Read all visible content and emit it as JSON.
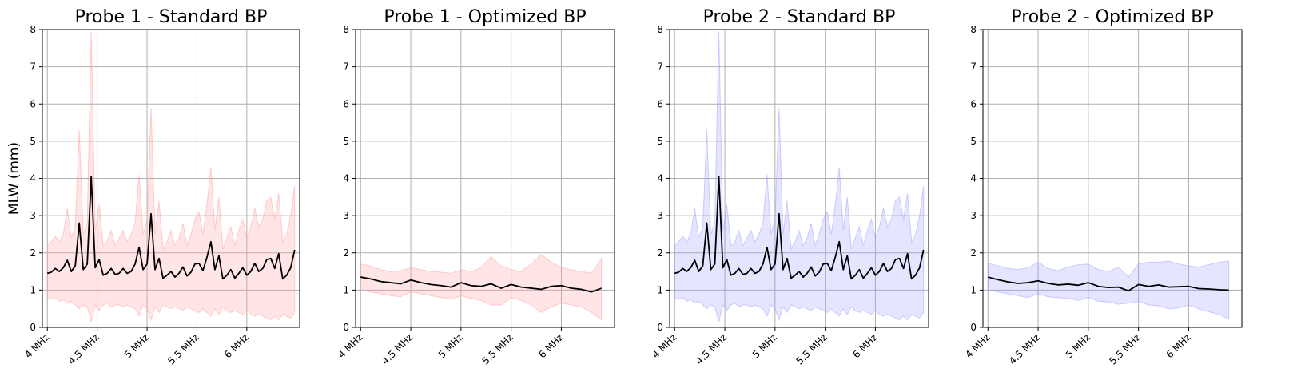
{
  "chart_data": [
    {
      "type": "line",
      "title": "Probe 1 - Standard BP",
      "ylabel": "MLW (mm)",
      "xlabel": "",
      "ylim": [
        0,
        8
      ],
      "yticks": [
        0,
        1,
        2,
        3,
        4,
        5,
        6,
        7,
        8
      ],
      "xticks": [
        "4 MHz",
        "4.5 MHz",
        "5 MHz",
        "5.5 MHz",
        "6 MHz"
      ],
      "grid": true,
      "band_color": "#ff9999",
      "line_color": "#000000",
      "x": [
        4.0,
        4.04,
        4.08,
        4.12,
        4.16,
        4.2,
        4.24,
        4.28,
        4.32,
        4.36,
        4.4,
        4.44,
        4.48,
        4.52,
        4.56,
        4.6,
        4.64,
        4.68,
        4.72,
        4.76,
        4.8,
        4.84,
        4.88,
        4.92,
        4.96,
        5.0,
        5.04,
        5.08,
        5.12,
        5.16,
        5.2,
        5.24,
        5.28,
        5.32,
        5.36,
        5.4,
        5.44,
        5.48,
        5.52,
        5.56,
        5.6,
        5.64,
        5.68,
        5.72,
        5.76,
        5.8,
        5.84,
        5.88,
        5.92,
        5.96,
        6.0,
        6.04,
        6.08,
        6.12,
        6.16,
        6.2,
        6.24,
        6.28,
        6.32,
        6.36,
        6.4,
        6.44,
        6.48
      ],
      "series": [
        {
          "mean": [
            1.45,
            1.48,
            1.58,
            1.5,
            1.6,
            1.8,
            1.5,
            1.65,
            2.8,
            1.55,
            1.7,
            4.05,
            1.6,
            1.82,
            1.4,
            1.45,
            1.58,
            1.42,
            1.45,
            1.58,
            1.45,
            1.5,
            1.7,
            2.15,
            1.55,
            1.7,
            3.05,
            1.55,
            1.85,
            1.32,
            1.4,
            1.5,
            1.35,
            1.45,
            1.62,
            1.38,
            1.48,
            1.7,
            1.72,
            1.52,
            1.88,
            2.3,
            1.55,
            1.92,
            1.3,
            1.4,
            1.55,
            1.32,
            1.45,
            1.6,
            1.4,
            1.5,
            1.72,
            1.5,
            1.58,
            1.82,
            1.85,
            1.58,
            1.98,
            1.3,
            1.4,
            1.6,
            2.08
          ],
          "upper": [
            2.2,
            2.3,
            2.45,
            2.3,
            2.5,
            3.2,
            2.4,
            2.7,
            5.3,
            2.5,
            2.8,
            7.95,
            2.6,
            3.3,
            2.2,
            2.3,
            2.6,
            2.2,
            2.4,
            2.6,
            2.3,
            2.5,
            2.8,
            4.1,
            2.5,
            2.9,
            5.9,
            2.5,
            3.4,
            2.1,
            2.3,
            2.6,
            2.2,
            2.4,
            2.8,
            2.2,
            2.5,
            2.9,
            3.1,
            2.5,
            3.3,
            4.3,
            2.6,
            3.5,
            2.1,
            2.4,
            2.7,
            2.2,
            2.6,
            2.9,
            2.4,
            2.7,
            3.2,
            2.7,
            2.9,
            3.4,
            3.5,
            2.9,
            3.6,
            2.3,
            2.5,
            3.0,
            3.8
          ],
          "lower": [
            0.8,
            0.75,
            0.8,
            0.7,
            0.75,
            0.65,
            0.7,
            0.6,
            0.5,
            0.6,
            0.55,
            0.15,
            0.6,
            0.45,
            0.6,
            0.65,
            0.55,
            0.6,
            0.6,
            0.55,
            0.6,
            0.55,
            0.5,
            0.3,
            0.6,
            0.5,
            0.2,
            0.55,
            0.4,
            0.6,
            0.55,
            0.5,
            0.55,
            0.5,
            0.45,
            0.55,
            0.5,
            0.45,
            0.4,
            0.5,
            0.4,
            0.3,
            0.5,
            0.35,
            0.55,
            0.45,
            0.4,
            0.45,
            0.4,
            0.35,
            0.45,
            0.35,
            0.3,
            0.35,
            0.3,
            0.25,
            0.2,
            0.3,
            0.2,
            0.35,
            0.3,
            0.25,
            0.4
          ]
        }
      ]
    },
    {
      "type": "line",
      "title": "Probe 1 - Optimized BP",
      "ylabel": "",
      "xlabel": "",
      "ylim": [
        0,
        8
      ],
      "yticks": [
        0,
        1,
        2,
        3,
        4,
        5,
        6,
        7,
        8
      ],
      "xticks": [
        "4 MHz",
        "4.5 MHz",
        "5 MHz",
        "5.5 MHz",
        "6 MHz"
      ],
      "grid": true,
      "band_color": "#ff9999",
      "line_color": "#000000",
      "x": [
        4.0,
        4.1,
        4.2,
        4.3,
        4.4,
        4.5,
        4.6,
        4.7,
        4.8,
        4.9,
        5.0,
        5.1,
        5.2,
        5.3,
        5.4,
        5.5,
        5.6,
        5.7,
        5.8,
        5.9,
        6.0,
        6.1,
        6.2,
        6.3,
        6.4
      ],
      "series": [
        {
          "mean": [
            1.35,
            1.3,
            1.23,
            1.2,
            1.17,
            1.27,
            1.2,
            1.15,
            1.12,
            1.08,
            1.2,
            1.12,
            1.1,
            1.17,
            1.05,
            1.15,
            1.08,
            1.05,
            1.02,
            1.1,
            1.12,
            1.05,
            1.02,
            0.95,
            1.05
          ],
          "upper": [
            1.7,
            1.65,
            1.55,
            1.5,
            1.52,
            1.6,
            1.55,
            1.5,
            1.48,
            1.45,
            1.55,
            1.5,
            1.6,
            1.9,
            1.65,
            1.55,
            1.5,
            1.7,
            1.95,
            1.75,
            1.6,
            1.55,
            1.5,
            1.45,
            1.85
          ],
          "lower": [
            1.0,
            0.95,
            0.9,
            0.85,
            0.82,
            0.95,
            0.9,
            0.85,
            0.8,
            0.75,
            0.85,
            0.78,
            0.72,
            0.6,
            0.6,
            0.8,
            0.72,
            0.6,
            0.4,
            0.55,
            0.65,
            0.6,
            0.55,
            0.4,
            0.2
          ]
        }
      ]
    },
    {
      "type": "line",
      "title": "Probe 2 - Standard BP",
      "ylabel": "",
      "xlabel": "",
      "ylim": [
        0,
        8
      ],
      "yticks": [
        0,
        1,
        2,
        3,
        4,
        5,
        6,
        7,
        8
      ],
      "xticks": [
        "4 MHz",
        "4.5 MHz",
        "5 MHz",
        "5.5 MHz",
        "6 MHz"
      ],
      "grid": true,
      "band_color": "#9999ff",
      "line_color": "#000000",
      "x": [
        4.0,
        4.04,
        4.08,
        4.12,
        4.16,
        4.2,
        4.24,
        4.28,
        4.32,
        4.36,
        4.4,
        4.44,
        4.48,
        4.52,
        4.56,
        4.6,
        4.64,
        4.68,
        4.72,
        4.76,
        4.8,
        4.84,
        4.88,
        4.92,
        4.96,
        5.0,
        5.04,
        5.08,
        5.12,
        5.16,
        5.2,
        5.24,
        5.28,
        5.32,
        5.36,
        5.4,
        5.44,
        5.48,
        5.52,
        5.56,
        5.6,
        5.64,
        5.68,
        5.72,
        5.76,
        5.8,
        5.84,
        5.88,
        5.92,
        5.96,
        6.0,
        6.04,
        6.08,
        6.12,
        6.16,
        6.2,
        6.24,
        6.28,
        6.32,
        6.36,
        6.4,
        6.44,
        6.48
      ],
      "series": [
        {
          "mean": [
            1.45,
            1.48,
            1.58,
            1.5,
            1.6,
            1.8,
            1.5,
            1.65,
            2.8,
            1.55,
            1.7,
            4.05,
            1.6,
            1.82,
            1.4,
            1.45,
            1.58,
            1.42,
            1.45,
            1.58,
            1.45,
            1.5,
            1.7,
            2.15,
            1.55,
            1.7,
            3.05,
            1.55,
            1.85,
            1.32,
            1.4,
            1.5,
            1.35,
            1.45,
            1.62,
            1.38,
            1.48,
            1.7,
            1.72,
            1.52,
            1.88,
            2.3,
            1.55,
            1.92,
            1.3,
            1.4,
            1.55,
            1.32,
            1.45,
            1.6,
            1.4,
            1.5,
            1.72,
            1.5,
            1.58,
            1.82,
            1.85,
            1.58,
            1.98,
            1.3,
            1.4,
            1.6,
            2.08
          ],
          "upper": [
            2.2,
            2.3,
            2.45,
            2.3,
            2.5,
            3.2,
            2.4,
            2.7,
            5.3,
            2.5,
            2.8,
            7.95,
            2.6,
            3.3,
            2.2,
            2.3,
            2.6,
            2.2,
            2.4,
            2.6,
            2.3,
            2.5,
            2.8,
            4.1,
            2.5,
            2.9,
            5.9,
            2.5,
            3.4,
            2.1,
            2.3,
            2.6,
            2.2,
            2.4,
            2.8,
            2.2,
            2.5,
            2.9,
            3.1,
            2.5,
            3.3,
            4.3,
            2.6,
            3.5,
            2.1,
            2.4,
            2.7,
            2.2,
            2.6,
            2.9,
            2.4,
            2.7,
            3.2,
            2.7,
            2.9,
            3.4,
            3.5,
            2.9,
            3.6,
            2.3,
            2.5,
            3.0,
            3.8
          ],
          "lower": [
            0.8,
            0.75,
            0.8,
            0.7,
            0.75,
            0.65,
            0.7,
            0.6,
            0.5,
            0.6,
            0.55,
            0.15,
            0.6,
            0.45,
            0.6,
            0.65,
            0.55,
            0.6,
            0.6,
            0.55,
            0.6,
            0.55,
            0.5,
            0.3,
            0.6,
            0.5,
            0.2,
            0.55,
            0.4,
            0.6,
            0.55,
            0.5,
            0.55,
            0.5,
            0.45,
            0.55,
            0.5,
            0.45,
            0.4,
            0.5,
            0.4,
            0.3,
            0.5,
            0.35,
            0.55,
            0.45,
            0.4,
            0.45,
            0.4,
            0.35,
            0.45,
            0.35,
            0.3,
            0.35,
            0.3,
            0.25,
            0.2,
            0.3,
            0.2,
            0.35,
            0.3,
            0.25,
            0.4
          ]
        }
      ]
    },
    {
      "type": "line",
      "title": "Probe 2 - Optimized BP",
      "ylabel": "",
      "xlabel": "",
      "ylim": [
        0,
        8
      ],
      "yticks": [
        0,
        1,
        2,
        3,
        4,
        5,
        6,
        7,
        8
      ],
      "xticks": [
        "4 MHz",
        "4.5 MHz",
        "5 MHz",
        "5.5 MHz",
        "6 MHz"
      ],
      "grid": true,
      "band_color": "#9999ff",
      "line_color": "#000000",
      "x": [
        4.0,
        4.1,
        4.2,
        4.3,
        4.4,
        4.5,
        4.6,
        4.7,
        4.8,
        4.9,
        5.0,
        5.1,
        5.2,
        5.3,
        5.4,
        5.5,
        5.6,
        5.7,
        5.8,
        5.9,
        6.0,
        6.1,
        6.2,
        6.3,
        6.4
      ],
      "series": [
        {
          "mean": [
            1.35,
            1.28,
            1.22,
            1.18,
            1.2,
            1.25,
            1.18,
            1.14,
            1.16,
            1.13,
            1.2,
            1.1,
            1.07,
            1.08,
            0.98,
            1.15,
            1.1,
            1.14,
            1.08,
            1.09,
            1.1,
            1.04,
            1.03,
            1.01,
            1.0
          ],
          "upper": [
            1.72,
            1.65,
            1.58,
            1.55,
            1.6,
            1.75,
            1.58,
            1.52,
            1.62,
            1.68,
            1.7,
            1.55,
            1.5,
            1.62,
            1.35,
            1.7,
            1.75,
            1.75,
            1.78,
            1.7,
            1.65,
            1.62,
            1.68,
            1.75,
            1.78
          ],
          "lower": [
            1.0,
            0.95,
            0.9,
            0.85,
            0.8,
            0.9,
            0.82,
            0.8,
            0.78,
            0.72,
            0.8,
            0.7,
            0.68,
            0.62,
            0.65,
            0.7,
            0.6,
            0.58,
            0.5,
            0.52,
            0.6,
            0.5,
            0.42,
            0.35,
            0.22
          ]
        }
      ]
    }
  ]
}
